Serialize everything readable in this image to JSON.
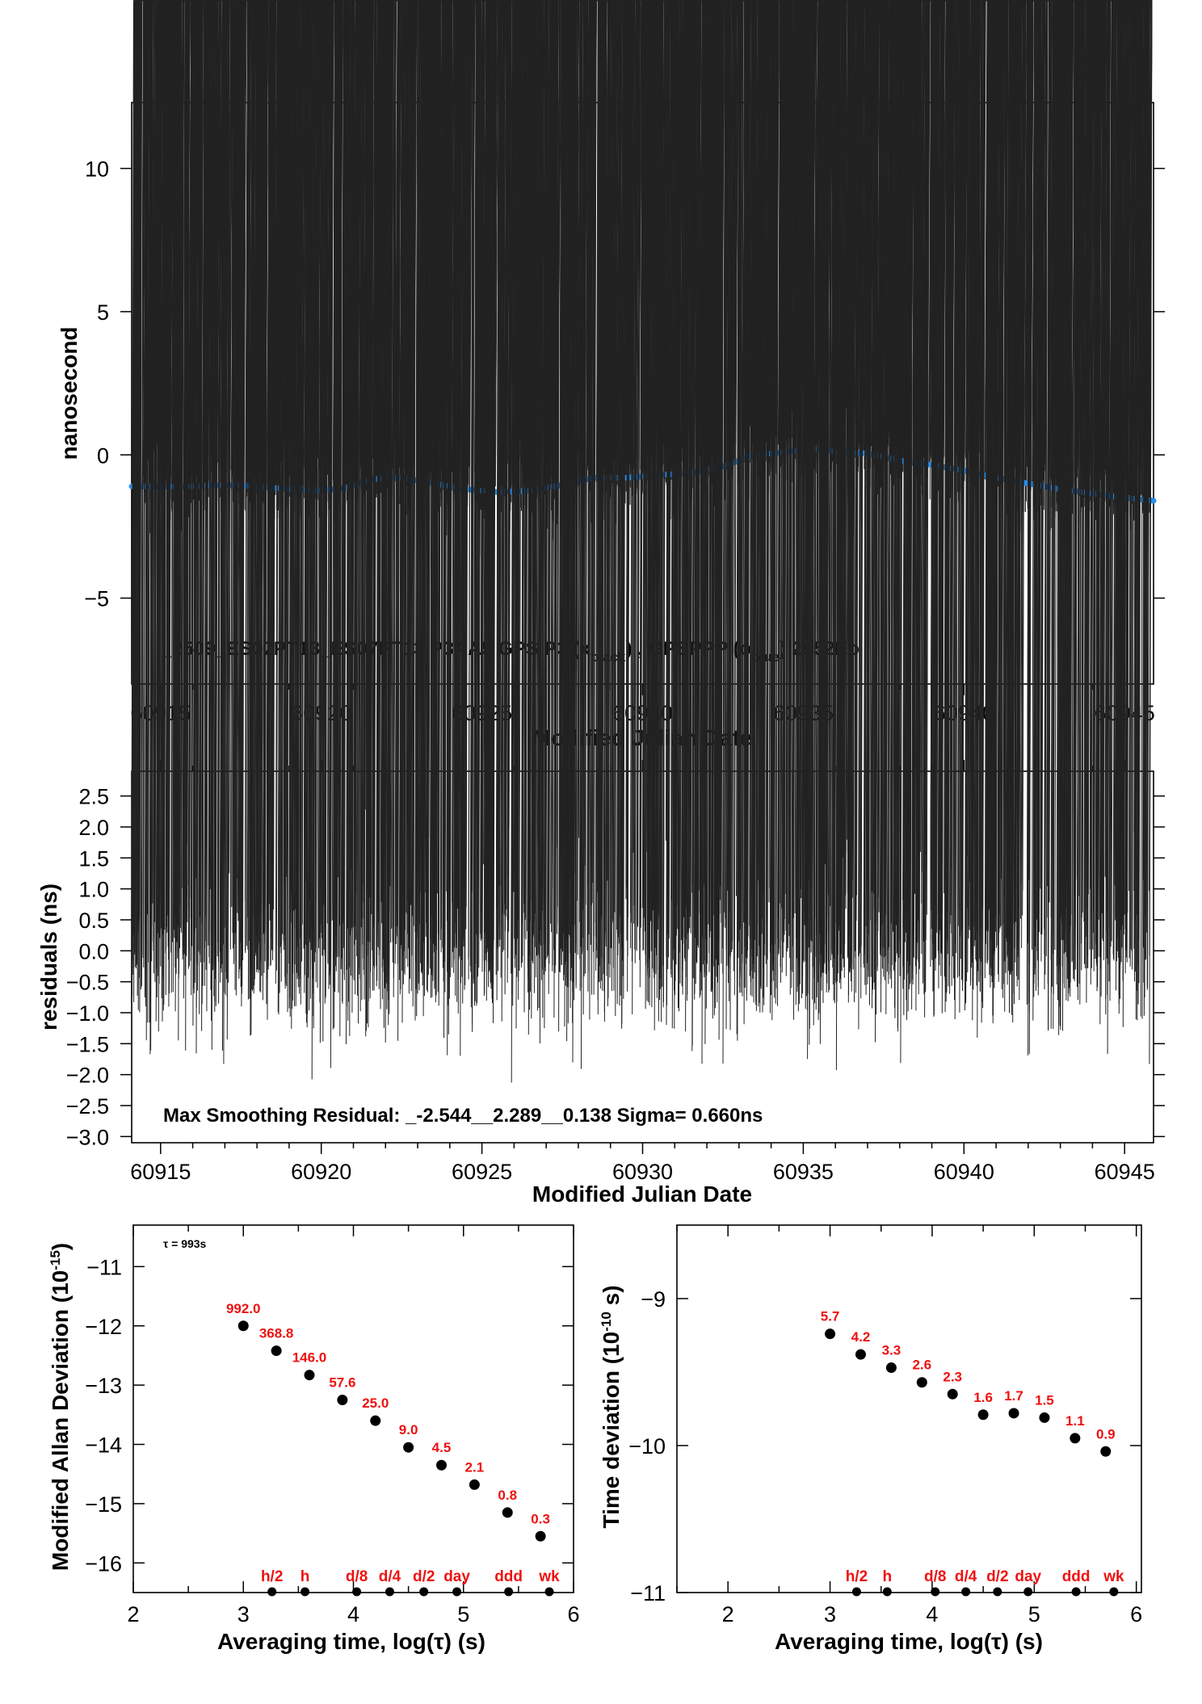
{
  "chart_data": [
    {
      "id": "offset",
      "type": "scatter",
      "title": "_2509_ES07PT13_ES07PT13.P3AA5     GPS P3 (x",
      "title_parts": {
        "main": "_2509_ES07PT13_ES07PT13.P3AA5     GPS P3 (x",
        "sub1": "black",
        "mid": ") ,  GPSPPP (o",
        "sub2": "blue",
        "tail": ")  2952Ep"
      },
      "xlabel": "Modified Julian Date",
      "ylabel": "nanosecond",
      "xlim": [
        60914.1,
        60945.9
      ],
      "ylim": [
        -8,
        12.3
      ],
      "xticks": [
        60915,
        60920,
        60925,
        60930,
        60935,
        60940,
        60945
      ],
      "yticks": [
        -5,
        0,
        5,
        10
      ],
      "ytick_labels": [
        "−5",
        "0",
        "5",
        "10"
      ],
      "series": [
        {
          "marker": "x",
          "color": "#000000",
          "count": 2900,
          "description": "scattered noisy points around the smoothed curve, spread about ±1 ns"
        },
        {
          "marker": "o",
          "color": "#2a8ce8",
          "x": [
            60914.1,
            60915.0,
            60916.0,
            60917.0,
            60918.0,
            60919.0,
            60920.0,
            60920.8,
            60921.5,
            60922.5,
            60923.5,
            60924.5,
            60925.5,
            60926.5,
            60927.5,
            60928.5,
            60929.5,
            60930.5,
            60931.5,
            60932.5,
            60933.5,
            60934.5,
            60935.2,
            60936.0,
            60937.0,
            60938.0,
            60939.0,
            60940.0,
            60941.0,
            60942.0,
            60943.0,
            60944.0,
            60945.0,
            60945.9
          ],
          "y": [
            -1.1,
            -1.1,
            -1.1,
            -1.05,
            -1.1,
            -1.2,
            -1.25,
            -1.15,
            -0.85,
            -0.8,
            -1.0,
            -1.2,
            -1.3,
            -1.25,
            -1.05,
            -0.8,
            -0.8,
            -0.7,
            -0.65,
            -0.4,
            0.0,
            0.1,
            0.25,
            0.1,
            0.05,
            -0.2,
            -0.35,
            -0.55,
            -0.8,
            -1.0,
            -1.2,
            -1.35,
            -1.5,
            -1.6
          ]
        }
      ]
    },
    {
      "id": "residuals",
      "type": "scatter",
      "xlabel": "Modified Julian Date",
      "ylabel": "residuals (ns)",
      "xlim": [
        60914.1,
        60945.9
      ],
      "ylim": [
        -3.1,
        2.9
      ],
      "xticks": [
        60915,
        60920,
        60925,
        60930,
        60935,
        60940,
        60945
      ],
      "yticks": [
        2.5,
        2.0,
        1.5,
        1.0,
        0.5,
        0.0,
        -0.5,
        -1.0,
        -1.5,
        -2.0,
        -2.5,
        -3.0
      ],
      "ytick_labels": [
        "2.5",
        "2.0",
        "1.5",
        "1.0",
        "0.5",
        "0.0",
        "−0.5",
        "−1.0",
        "−1.5",
        "−2.0",
        "−2.5",
        "−3.0"
      ],
      "annotation": "Max Smoothing Residual: _-2.544__2.289__0.138  Sigma= 0.660ns",
      "series": [
        {
          "marker": "x",
          "color": "#000000",
          "count": 2900,
          "min": -2.544,
          "max": 2.289,
          "sigma": 0.66
        }
      ]
    },
    {
      "id": "mdev",
      "type": "scatter",
      "xlabel": "Averaging time, log(τ) (s)",
      "ylabel": "Modified Allan Deviation (10",
      "ylabel_sup": "-15",
      "ylabel_tail": ")",
      "xlim": [
        2,
        6
      ],
      "ylim": [
        -16.5,
        -10.3
      ],
      "xticks": [
        2,
        3,
        4,
        5,
        6
      ],
      "yticks": [
        -11,
        -12,
        -13,
        -14,
        -15,
        -16
      ],
      "ytick_labels": [
        "−11",
        "−12",
        "−13",
        "−14",
        "−15",
        "−16"
      ],
      "note": "τ = 993s",
      "points": {
        "x": [
          3.0,
          3.3,
          3.6,
          3.9,
          4.2,
          4.5,
          4.8,
          5.1,
          5.4,
          5.7
        ],
        "y": [
          -12.0,
          -12.42,
          -12.83,
          -13.25,
          -13.6,
          -14.05,
          -14.35,
          -14.68,
          -15.15,
          -15.55
        ],
        "labels": [
          "992.0",
          "368.8",
          "146.0",
          "57.6",
          "25.0",
          "9.0",
          "4.5",
          "2.1",
          "0.8",
          "0.3"
        ]
      },
      "markers": {
        "x": [
          3.26,
          3.56,
          4.03,
          4.33,
          4.64,
          4.94,
          5.41,
          5.78
        ],
        "labels": [
          "h/2",
          "h",
          "d/8",
          "d/4",
          "d/2",
          "day",
          "ddd",
          "wk"
        ]
      }
    },
    {
      "id": "tdev",
      "type": "scatter",
      "xlabel": "Averaging time, log(τ) (s)",
      "ylabel": "Time deviation (10",
      "ylabel_sup": "-10",
      "ylabel_tail": " s)",
      "xlim": [
        1.5,
        6.05
      ],
      "ylim": [
        -11,
        -8.5
      ],
      "xticks": [
        2,
        3,
        4,
        5,
        6
      ],
      "yticks": [
        -9,
        -10,
        -11
      ],
      "ytick_labels": [
        "−9",
        "−10",
        "−11"
      ],
      "points": {
        "x": [
          3.0,
          3.3,
          3.6,
          3.9,
          4.2,
          4.5,
          4.8,
          5.1,
          5.4,
          5.7
        ],
        "y": [
          -9.24,
          -9.38,
          -9.47,
          -9.57,
          -9.65,
          -9.79,
          -9.78,
          -9.81,
          -9.95,
          -10.04
        ],
        "labels": [
          "5.7",
          "4.2",
          "3.3",
          "2.6",
          "2.3",
          "1.6",
          "1.7",
          "1.5",
          "1.1",
          "0.9"
        ]
      },
      "markers": {
        "x": [
          3.26,
          3.56,
          4.03,
          4.33,
          4.64,
          4.94,
          5.41,
          5.78
        ],
        "labels": [
          "h/2",
          "h",
          "d/8",
          "d/4",
          "d/2",
          "day",
          "ddd",
          "wk"
        ]
      }
    }
  ]
}
